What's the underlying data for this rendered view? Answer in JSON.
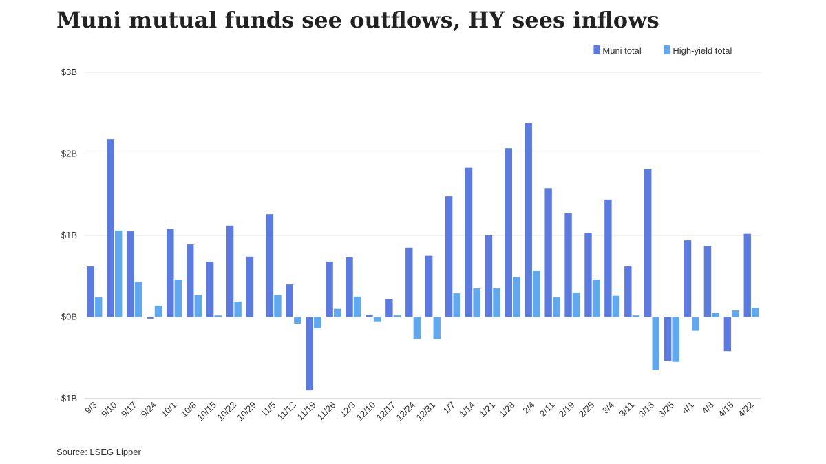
{
  "chart_data": {
    "type": "bar",
    "title": "Muni mutual funds see outflows, HY sees inflows",
    "source": "Source: LSEG Lipper",
    "legend": "top-right",
    "grid": true,
    "categories": [
      "9/3",
      "9/10",
      "9/17",
      "9/24",
      "10/1",
      "10/8",
      "10/15",
      "10/22",
      "10/29",
      "11/5",
      "11/12",
      "11/19",
      "11/26",
      "12/3",
      "12/10",
      "12/17",
      "12/24",
      "12/31",
      "1/7",
      "1/14",
      "1/21",
      "1/28",
      "2/4",
      "2/11",
      "2/19",
      "2/25",
      "3/4",
      "3/11",
      "3/18",
      "3/25",
      "4/1",
      "4/8",
      "4/15",
      "4/22"
    ],
    "series": [
      {
        "name": "Muni total",
        "color": "#5b7be2",
        "values": [
          0.62,
          2.18,
          1.05,
          -0.02,
          1.08,
          0.89,
          0.68,
          1.12,
          0.74,
          1.26,
          0.4,
          -0.9,
          0.68,
          0.73,
          0.03,
          0.22,
          0.85,
          0.75,
          1.48,
          1.83,
          1.0,
          2.07,
          2.38,
          1.58,
          1.27,
          1.03,
          1.44,
          0.62,
          1.81,
          -0.54,
          0.94,
          0.87,
          -0.42,
          1.02
        ]
      },
      {
        "name": "High-yield total",
        "color": "#5ea9f1",
        "values": [
          0.24,
          1.06,
          0.43,
          0.14,
          0.46,
          0.27,
          0.02,
          0.19,
          0.0,
          0.27,
          -0.08,
          -0.14,
          0.1,
          0.25,
          -0.06,
          0.02,
          -0.27,
          -0.27,
          0.29,
          0.35,
          0.35,
          0.49,
          0.57,
          0.24,
          0.3,
          0.46,
          0.26,
          0.02,
          -0.65,
          -0.55,
          -0.17,
          0.05,
          0.08,
          0.11
        ]
      }
    ],
    "ylim": [
      -1,
      3
    ],
    "yticks": [
      {
        "value": -1,
        "label": "-$1B"
      },
      {
        "value": 0,
        "label": "$0B"
      },
      {
        "value": 1,
        "label": "$1B"
      },
      {
        "value": 2,
        "label": "$2B"
      },
      {
        "value": 3,
        "label": "$3B"
      }
    ]
  }
}
